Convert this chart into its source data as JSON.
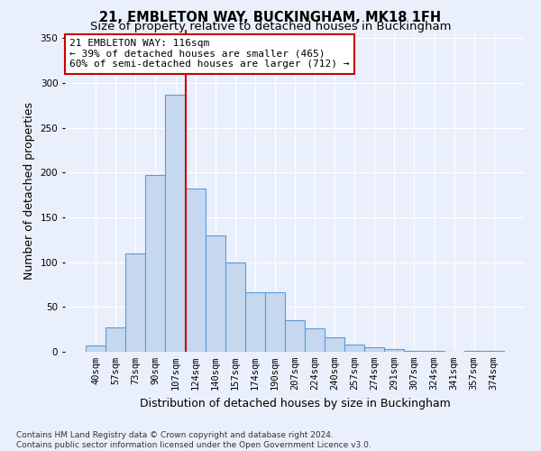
{
  "title1": "21, EMBLETON WAY, BUCKINGHAM, MK18 1FH",
  "title2": "Size of property relative to detached houses in Buckingham",
  "xlabel": "Distribution of detached houses by size in Buckingham",
  "ylabel": "Number of detached properties",
  "footer1": "Contains HM Land Registry data © Crown copyright and database right 2024.",
  "footer2": "Contains public sector information licensed under the Open Government Licence v3.0.",
  "annotation_line1": "21 EMBLETON WAY: 116sqm",
  "annotation_line2": "← 39% of detached houses are smaller (465)",
  "annotation_line3": "60% of semi-detached houses are larger (712) →",
  "bar_categories": [
    "40sqm",
    "57sqm",
    "73sqm",
    "90sqm",
    "107sqm",
    "124sqm",
    "140sqm",
    "157sqm",
    "174sqm",
    "190sqm",
    "207sqm",
    "224sqm",
    "240sqm",
    "257sqm",
    "274sqm",
    "291sqm",
    "307sqm",
    "324sqm",
    "341sqm",
    "357sqm",
    "374sqm"
  ],
  "bar_values": [
    7,
    27,
    110,
    197,
    287,
    182,
    130,
    100,
    66,
    66,
    35,
    26,
    16,
    8,
    5,
    3,
    1,
    1,
    0,
    1,
    1
  ],
  "bar_color": "#c5d8f0",
  "bar_edge_color": "#5b9bd5",
  "vline_color": "#cc0000",
  "ylim": [
    0,
    360
  ],
  "yticks": [
    0,
    50,
    100,
    150,
    200,
    250,
    300,
    350
  ],
  "annotation_box_color": "#ffffff",
  "annotation_box_edge": "#cc0000",
  "bg_color": "#eaf0fb",
  "plot_bg_color": "#eaf0fb",
  "grid_color": "#ffffff",
  "title_fontsize": 10.5,
  "subtitle_fontsize": 9.5,
  "axis_label_fontsize": 9,
  "tick_fontsize": 7.5,
  "annotation_fontsize": 8,
  "footer_fontsize": 6.5,
  "vline_bar_index": 4
}
